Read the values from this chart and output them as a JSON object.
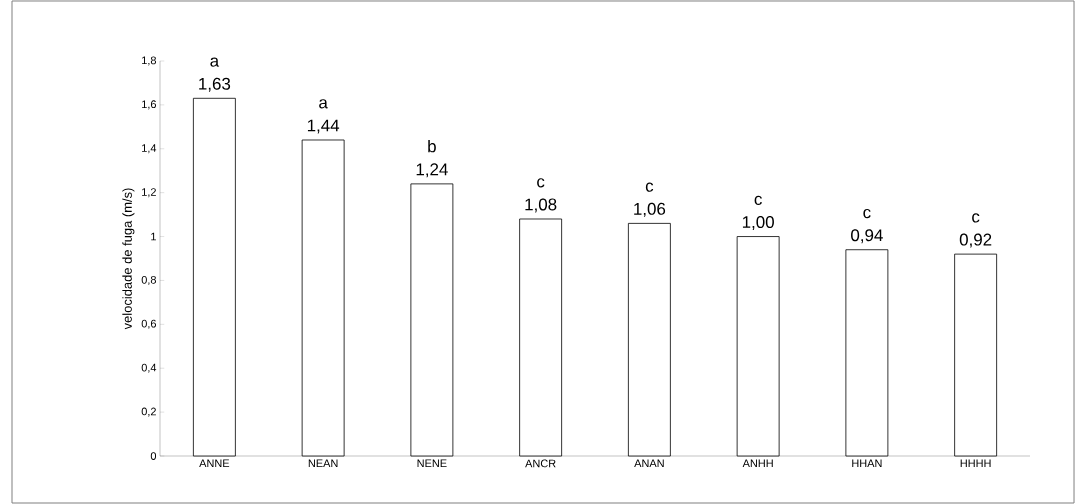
{
  "chart_data": {
    "type": "bar",
    "ylabel": "velocidade de fuga (m/s)",
    "categories": [
      "ANNE",
      "NEAN",
      "NENE",
      "ANCR",
      "ANAN",
      "ANHH",
      "HHAN",
      "HHHH"
    ],
    "values": [
      1.63,
      1.44,
      1.24,
      1.08,
      1.06,
      1.0,
      0.94,
      0.92
    ],
    "value_labels": [
      "1,63",
      "1,44",
      "1,24",
      "1,08",
      "1,06",
      "1,00",
      "0,94",
      "0,92"
    ],
    "color": "#ffffff",
    "ylim": [
      0,
      1.8
    ],
    "yticks": [
      0,
      {
        "value": 0.2,
        "label": "0,2"
      },
      {
        "value": 0.4,
        "label": "0,4"
      },
      {
        "value": 0.6,
        "label": "0,6"
      },
      {
        "value": 0.8,
        "label": "0,8"
      },
      1,
      {
        "value": 1.2,
        "label": "1,2"
      },
      {
        "value": 1.4,
        "label": "1,4"
      },
      {
        "value": 1.6,
        "label": "1,6"
      },
      {
        "value": 1.8,
        "label": "1,8"
      }
    ],
    "annotations": [
      {
        "text": "a",
        "x": "ANNE",
        "y": 1.63
      },
      {
        "text": "a",
        "x": "NEAN",
        "y": 1.44
      },
      {
        "text": "b",
        "x": "NENE",
        "y": 1.24
      },
      {
        "text": "c",
        "x": "ANCR",
        "y": 1.08
      },
      {
        "text": "c",
        "x": "ANAN",
        "y": 1.06
      },
      {
        "text": "c",
        "x": "ANHH",
        "y": 1.0
      },
      {
        "text": "c",
        "x": "HHAN",
        "y": 0.94
      },
      {
        "text": "c",
        "x": "HHHH",
        "y": 0.92
      }
    ]
  }
}
